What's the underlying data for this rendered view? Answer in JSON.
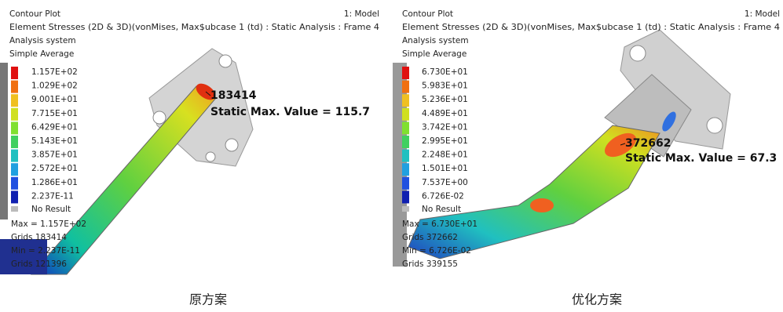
{
  "panels": [
    {
      "header": {
        "title": "Contour Plot",
        "model": "1: Model",
        "result": "Element Stresses (2D & 3D)(vonMises, Max$ubcase 1 (td) : Static Analysis : Frame 4",
        "system": "Analysis system",
        "averaging": "Simple Average"
      },
      "legend": [
        "1.157E+02",
        "1.029E+02",
        "9.001E+01",
        "7.715E+01",
        "6.429E+01",
        "5.143E+01",
        "3.857E+01",
        "2.572E+01",
        "1.286E+01",
        "2.237E-11"
      ],
      "no_result": "No Result",
      "stats": [
        "Max = 1.157E+02",
        "Grids 183414",
        "Min = 2.237E-11",
        "Grids 121396"
      ],
      "annotation": {
        "node": "183414",
        "value": "Static Max. Value =  115.7"
      },
      "caption": "原方案"
    },
    {
      "header": {
        "title": "Contour Plot",
        "model": "1: Model",
        "result": "Element Stresses (2D & 3D)(vonMises, Max$ubcase 1 (td) : Static Analysis : Frame 4",
        "system": "Analysis system",
        "averaging": "Simple Average"
      },
      "legend": [
        "6.730E+01",
        "5.983E+01",
        "5.236E+01",
        "4.489E+01",
        "3.742E+01",
        "2.995E+01",
        "2.248E+01",
        "1.501E+01",
        "7.537E+00",
        "6.726E-02"
      ],
      "no_result": "No Result",
      "stats": [
        "Max = 6.730E+01",
        "Grids 372662",
        "Min = 6.726E-02",
        "Grids 339155"
      ],
      "annotation": {
        "node": "372662",
        "value": "Static Max. Value =  67.3"
      },
      "caption": "优化方案"
    }
  ]
}
